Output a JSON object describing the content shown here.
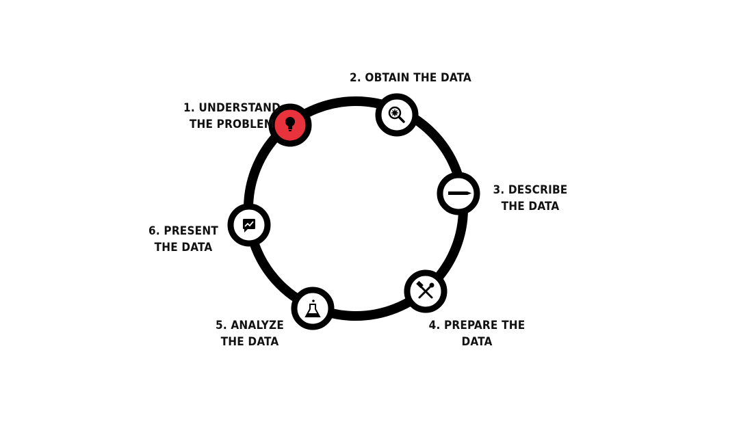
{
  "colors": {
    "ring": "#000000",
    "node_fill": "#ffffff",
    "active_fill": "#e8323c",
    "text": "#111111"
  },
  "steps": [
    {
      "number": "1.",
      "line1": "1. UNDERSTAND",
      "line2": "THE PROBLEM",
      "icon": "lightbulb-icon",
      "active": true
    },
    {
      "number": "2.",
      "line1": "2. OBTAIN THE DATA",
      "line2": "",
      "icon": "magnifier-gear-icon",
      "active": false
    },
    {
      "number": "3.",
      "line1": "3. DESCRIBE",
      "line2": "THE DATA",
      "icon": "pencil-icon",
      "active": false
    },
    {
      "number": "4.",
      "line1": "4. PREPARE THE",
      "line2": "DATA",
      "icon": "tools-icon",
      "active": false
    },
    {
      "number": "5.",
      "line1": "5. ANALYZE",
      "line2": "THE DATA",
      "icon": "flask-icon",
      "active": false
    },
    {
      "number": "6.",
      "line1": "6. PRESENT",
      "line2": "THE DATA",
      "icon": "chart-message-icon",
      "active": false
    }
  ]
}
